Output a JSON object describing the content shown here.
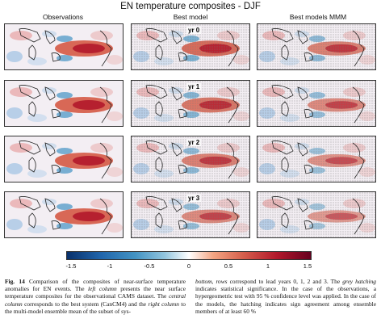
{
  "figure": {
    "title": "EN temperature composites - DJF",
    "columns": [
      "Observations",
      "Best model",
      "Best models MMM"
    ],
    "row_labels": [
      "yr 0",
      "yr 1",
      "yr 2",
      "yr 3"
    ],
    "colorbar": {
      "ticks": [
        "-1.5",
        "-1",
        "-0.5",
        "0",
        "0.5",
        "1",
        "1.5"
      ],
      "colors": [
        "#08306b",
        "#2166ac",
        "#4393c3",
        "#92c5de",
        "#ffffff",
        "#f4a582",
        "#d6604d",
        "#b2182b",
        "#67001f"
      ]
    }
  },
  "caption": {
    "label": "Fig. 14",
    "left_1": " Comparison of the composites of near-surface temperature anomalies for EN events. The ",
    "left_it1": "left column",
    "left_2": " presents the near surface temperature composites for the observational CAMS dataset. The ",
    "left_it2": "central column",
    "left_3": " corresponds to the best system (CanCM4) and the ",
    "left_it3": "right column",
    "left_4": " to the multi-model ensemble mean of the subset of sys-",
    "right_it1": "bottom, rows",
    "right_1": " correspond to lead years 0, 1, 2 and 3. The ",
    "right_it2": "grey hatching",
    "right_2": " indicates statistical significance. In the case of the observations, a hypergeometric test with 95 % confidence level was applied. In the case of the models, the hatching indicates sign agreement among ensemble members of at least 60 %"
  }
}
